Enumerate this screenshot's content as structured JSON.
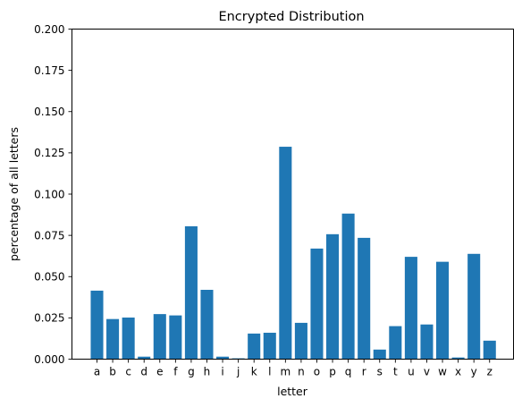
{
  "chart_data": {
    "type": "bar",
    "title": "Encrypted Distribution",
    "xlabel": "letter",
    "ylabel": "percentage of all letters",
    "ylim": [
      0,
      0.2
    ],
    "yticks": [
      "0.000",
      "0.025",
      "0.050",
      "0.075",
      "0.100",
      "0.125",
      "0.150",
      "0.175",
      "0.200"
    ],
    "grid": false,
    "color": "#1f77b4",
    "categories": [
      "a",
      "b",
      "c",
      "d",
      "e",
      "f",
      "g",
      "h",
      "i",
      "j",
      "k",
      "l",
      "m",
      "n",
      "o",
      "p",
      "q",
      "r",
      "s",
      "t",
      "u",
      "v",
      "w",
      "x",
      "y",
      "z"
    ],
    "values": [
      0.0415,
      0.0243,
      0.0252,
      0.0015,
      0.0273,
      0.0265,
      0.0805,
      0.042,
      0.0015,
      0.0005,
      0.0155,
      0.016,
      0.1287,
      0.022,
      0.067,
      0.0757,
      0.0882,
      0.0735,
      0.0058,
      0.02,
      0.062,
      0.021,
      0.059,
      0.001,
      0.0638,
      0.0112
    ]
  }
}
